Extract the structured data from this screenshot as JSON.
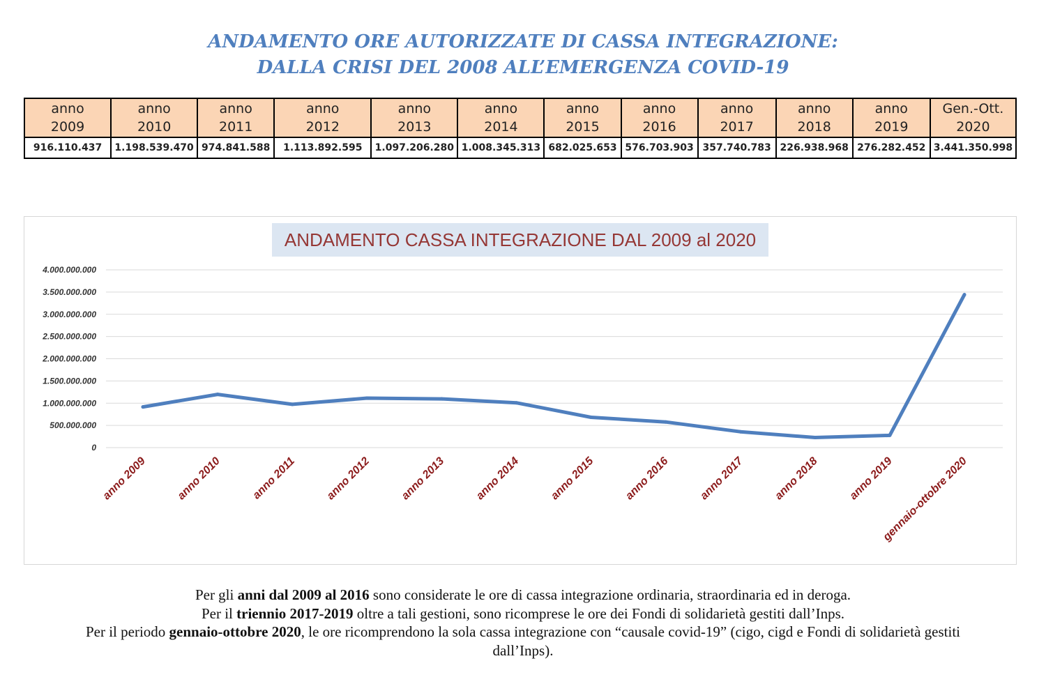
{
  "header": {
    "title_line1": "ANDAMENTO ORE AUTORIZZATE DI CASSA INTEGRAZIONE:",
    "title_line2": "DALLA CRISI DEL 2008 ALL’EMERGENZA COVID-19"
  },
  "table": {
    "columns": [
      {
        "word": "anno",
        "year": "2009",
        "value": "916.110.437"
      },
      {
        "word": "anno",
        "year": "2010",
        "value": "1.198.539.470"
      },
      {
        "word": "anno",
        "year": "2011",
        "value": "974.841.588"
      },
      {
        "word": "anno",
        "year": "2012",
        "value": "1.113.892.595"
      },
      {
        "word": "anno",
        "year": "2013",
        "value": "1.097.206.280"
      },
      {
        "word": "anno",
        "year": "2014",
        "value": "1.008.345.313"
      },
      {
        "word": "anno",
        "year": "2015",
        "value": "682.025.653"
      },
      {
        "word": "anno",
        "year": "2016",
        "value": "576.703.903"
      },
      {
        "word": "anno",
        "year": "2017",
        "value": "357.740.783"
      },
      {
        "word": "anno",
        "year": "2018",
        "value": "226.938.968"
      },
      {
        "word": "anno",
        "year": "2019",
        "value": "276.282.452"
      },
      {
        "word": "Gen.-Ott.",
        "year": "2020",
        "value": "3.441.350.998"
      }
    ]
  },
  "chart_data": {
    "type": "line",
    "title": "ANDAMENTO CASSA INTEGRAZIONE DAL 2009 al 2020",
    "categories": [
      "anno 2009",
      "anno 2010",
      "anno 2011",
      "anno 2012",
      "anno 2013",
      "anno 2014",
      "anno 2015",
      "anno 2016",
      "anno 2017",
      "anno 2018",
      "anno 2019",
      "gennaio-ottobre 2020"
    ],
    "series": [
      {
        "values": [
          916110437,
          1198539470,
          974841588,
          1113892595,
          1097206280,
          1008345313,
          682025653,
          576703903,
          357740783,
          226938968,
          276282452,
          3441350998
        ]
      }
    ],
    "ylim": [
      0,
      4000000000
    ],
    "yticks": [
      0,
      500000000,
      1000000000,
      1500000000,
      2000000000,
      2500000000,
      3000000000,
      3500000000,
      4000000000
    ],
    "ytick_labels": [
      "0",
      "500.000.000",
      "1.000.000.000",
      "1.500.000.000",
      "2.000.000.000",
      "2.500.000.000",
      "3.000.000.000",
      "3.500.000.000",
      "4.000.000.000"
    ],
    "grid": true,
    "legend": "none",
    "line_color": "#4f7fbe",
    "xtick_color": "#8b1a1a"
  },
  "notes": {
    "line1_a": "Per gli ",
    "line1_b": "anni dal 2009 al 2016",
    "line1_c": " sono considerate le ore di cassa integrazione ordinaria, straordinaria ed in deroga.",
    "line2_a": "Per il ",
    "line2_b": "triennio 2017-2019",
    "line2_c": " oltre a tali gestioni, sono ricomprese le ore dei Fondi di solidarietà gestiti dall’Inps.",
    "line3_a": "Per il periodo ",
    "line3_b": "gennaio-ottobre 2020",
    "line3_c": ", le ore ricomprendono la sola cassa integrazione con “causale covid-19” (cigo, cigd e Fondi di solidarietà gestiti",
    "line4": "dall’Inps)."
  }
}
